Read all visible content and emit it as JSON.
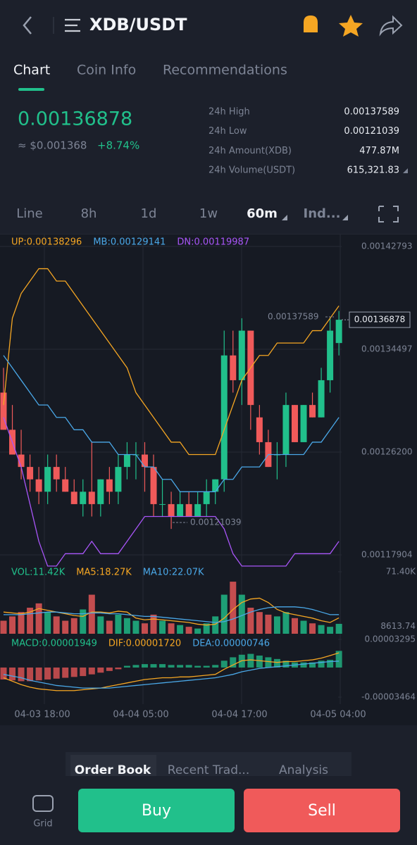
{
  "header": {
    "title": "XDB/USDT"
  },
  "tabs": [
    "Chart",
    "Coin Info",
    "Recommendations"
  ],
  "ticker": {
    "price": "0.00136878",
    "fiat": "≈ $0.001368",
    "change": "+8.74%"
  },
  "stats": [
    {
      "label": "24h High",
      "value": "0.00137589"
    },
    {
      "label": "24h Low",
      "value": "0.00121039"
    },
    {
      "label": "24h Amount(XDB)",
      "value": "477.87M"
    },
    {
      "label": "24h Volume(USDT)",
      "value": "615,321.83"
    }
  ],
  "intervals": [
    "Line",
    "8h",
    "1d",
    "1w",
    "60m",
    "Ind..."
  ],
  "dates": [
    "04-03 18:00",
    "04-04 05:00",
    "04-04 17:00",
    "04-05 04:00"
  ],
  "annotations": {
    "high": "0.00137589",
    "low": "0.00121039",
    "last": "0.00136878"
  },
  "chart_data": [
    {
      "type": "candlestick",
      "ylim": [
        0.00117222,
        0.00143475
      ],
      "yticks": [
        0.00142793,
        0.00134497,
        {
          "value": 0.001262,
          "label": "0.00126200"
        },
        0.00117904
      ],
      "up_color": "#21c08b",
      "down_color": "#f05a5a",
      "candles": [
        [
          0.00131,
          0.00133,
          0.00128,
          0.00128
        ],
        [
          0.00128,
          0.0013,
          0.00126,
          0.00126
        ],
        [
          0.00126,
          0.00128,
          0.00124,
          0.00125
        ],
        [
          0.00125,
          0.00126,
          0.00123,
          0.00124
        ],
        [
          0.00124,
          0.00125,
          0.00122,
          0.00123
        ],
        [
          0.00123,
          0.00126,
          0.00122,
          0.00125
        ],
        [
          0.00125,
          0.00126,
          0.00123,
          0.00124
        ],
        [
          0.00124,
          0.00125,
          0.00123,
          0.00123
        ],
        [
          0.00123,
          0.00124,
          0.00122,
          0.00122
        ],
        [
          0.00122,
          0.00124,
          0.00121,
          0.00123
        ],
        [
          0.00123,
          0.00127,
          0.00121,
          0.00122
        ],
        [
          0.00122,
          0.00124,
          0.00121,
          0.00124
        ],
        [
          0.00124,
          0.00125,
          0.00122,
          0.00123
        ],
        [
          0.00123,
          0.00126,
          0.00122,
          0.00125
        ],
        [
          0.00125,
          0.00127,
          0.00124,
          0.00126
        ],
        [
          0.00126,
          0.00127,
          0.00124,
          0.00126
        ],
        [
          0.00126,
          0.00127,
          0.00123,
          0.00125
        ],
        [
          0.00125,
          0.00126,
          0.00121,
          0.00122
        ],
        [
          0.00122,
          0.00124,
          0.00121,
          0.00122
        ],
        [
          0.00122,
          0.00123,
          0.0012,
          0.00121
        ],
        [
          0.00121,
          0.00123,
          0.00121,
          0.00122
        ],
        [
          0.00122,
          0.00123,
          0.00121,
          0.00121
        ],
        [
          0.00121,
          0.00123,
          0.00121,
          0.00122
        ],
        [
          0.00122,
          0.00124,
          0.00121,
          0.00123
        ],
        [
          0.00123,
          0.00124,
          0.00122,
          0.00124
        ],
        [
          0.00124,
          0.00136,
          0.00123,
          0.00134
        ],
        [
          0.00134,
          0.00136,
          0.00131,
          0.00132
        ],
        [
          0.00132,
          0.00137,
          0.0013,
          0.00136
        ],
        [
          0.00136,
          0.00136,
          0.00128,
          0.0013
        ],
        [
          0.00129,
          0.0013,
          0.00126,
          0.00127
        ],
        [
          0.00127,
          0.00128,
          0.00125,
          0.00125
        ],
        [
          0.00126,
          0.00127,
          0.00124,
          0.00126
        ],
        [
          0.00126,
          0.00131,
          0.00125,
          0.0013
        ],
        [
          0.0013,
          0.0013,
          0.00127,
          0.00127
        ],
        [
          0.00127,
          0.0013,
          0.00127,
          0.0013
        ],
        [
          0.0013,
          0.00131,
          0.00129,
          0.00129
        ],
        [
          0.00129,
          0.00133,
          0.00129,
          0.00132
        ],
        [
          0.00132,
          0.00137,
          0.00131,
          0.00136
        ],
        [
          0.00135,
          0.00137589,
          0.00134,
          0.00136878
        ]
      ],
      "series": [
        {
          "name": "UP:0.00138296",
          "color": "#f5a623",
          "values": [
            0.0013,
            0.00137,
            0.00139,
            0.0014,
            0.00141,
            0.00141,
            0.0014,
            0.0014,
            0.00139,
            0.00138,
            0.00137,
            0.00136,
            0.00135,
            0.00134,
            0.00133,
            0.00131,
            0.0013,
            0.00129,
            0.00128,
            0.00127,
            0.00127,
            0.00126,
            0.00126,
            0.00126,
            0.00126,
            0.00128,
            0.0013,
            0.00132,
            0.00133,
            0.00134,
            0.00134,
            0.00135,
            0.00135,
            0.00135,
            0.00135,
            0.00136,
            0.00136,
            0.00137,
            0.00138
          ]
        },
        {
          "name": "MB:0.00129141",
          "color": "#4aa8e8",
          "values": [
            0.00134,
            0.00133,
            0.00132,
            0.00131,
            0.0013,
            0.0013,
            0.00129,
            0.00129,
            0.00128,
            0.00128,
            0.00127,
            0.00127,
            0.00127,
            0.00126,
            0.00126,
            0.00126,
            0.00125,
            0.00125,
            0.00124,
            0.00124,
            0.00123,
            0.00123,
            0.00123,
            0.00123,
            0.00123,
            0.00124,
            0.00124,
            0.00125,
            0.00125,
            0.00125,
            0.00126,
            0.00126,
            0.00126,
            0.00126,
            0.00126,
            0.00127,
            0.00127,
            0.00128,
            0.00129
          ]
        },
        {
          "name": "DN:0.00119987",
          "color": "#a855f7",
          "values": [
            0.00129,
            0.00127,
            0.00125,
            0.00122,
            0.00119,
            0.00117,
            0.00117,
            0.00118,
            0.00118,
            0.00118,
            0.00119,
            0.00118,
            0.00118,
            0.00118,
            0.00119,
            0.0012,
            0.00121,
            0.00121,
            0.00121,
            0.00121,
            0.00121,
            0.00121,
            0.00121,
            0.00121,
            0.00121,
            0.0012,
            0.00118,
            0.00117,
            0.00117,
            0.00117,
            0.00117,
            0.00117,
            0.00117,
            0.00118,
            0.00118,
            0.00118,
            0.00118,
            0.00118,
            0.00119
          ]
        }
      ]
    },
    {
      "type": "volume",
      "ylim": [
        0,
        71400
      ],
      "yticks": [
        {
          "value": 71400,
          "label": "71.40K"
        },
        8613.74
      ],
      "bars": {
        "name": "VOL:11.42K",
        "color": "#21c08b",
        "values": [
          15000,
          20000,
          25000,
          30000,
          35000,
          25000,
          20000,
          15000,
          18000,
          28000,
          45000,
          20000,
          15000,
          22000,
          18000,
          15000,
          12000,
          22000,
          15000,
          12000,
          10000,
          8000,
          6000,
          12000,
          20000,
          45000,
          60000,
          45000,
          30000,
          25000,
          22000,
          20000,
          25000,
          18000,
          15000,
          12000,
          10000,
          8000,
          11420
        ]
      },
      "series": [
        {
          "name": "MA5:18.27K",
          "color": "#f5a623",
          "values": [
            25000,
            24000,
            23000,
            25000,
            29000,
            27000,
            25000,
            23000,
            21000,
            20000,
            25000,
            25000,
            24000,
            26000,
            25000,
            18000,
            16000,
            17000,
            16000,
            15000,
            14000,
            13000,
            11000,
            10000,
            11000,
            18000,
            28000,
            36000,
            40000,
            41000,
            36000,
            28000,
            24000,
            22000,
            20000,
            18000,
            15000,
            13000,
            18270
          ]
        },
        {
          "name": "MA10:22.07K",
          "color": "#4aa8e8",
          "values": [
            22000,
            22000,
            22000,
            23000,
            24000,
            25000,
            25000,
            24000,
            23000,
            23000,
            24000,
            24000,
            23000,
            23000,
            22000,
            21000,
            20000,
            20000,
            19000,
            18000,
            17000,
            16000,
            15000,
            14000,
            13000,
            14000,
            17000,
            21000,
            25000,
            28000,
            30000,
            31000,
            31000,
            31000,
            30000,
            28000,
            25000,
            22000,
            22070
          ]
        }
      ]
    },
    {
      "type": "macd",
      "ylim": [
        -3.464e-05,
        3.295e-05
      ],
      "yticks": [
        3.295e-05,
        -3.464e-05
      ],
      "bars": {
        "name": "MACD:0.00001949",
        "color": "#21c08b",
        "values": [
          -1.4e-05,
          -1.5e-05,
          -1.6e-05,
          -1.6e-05,
          -1.5e-05,
          -1.4e-05,
          -1.3e-05,
          -1.2e-05,
          -1.1e-05,
          -1e-05,
          -8e-06,
          -6e-06,
          -4e-06,
          -2e-06,
          2e-06,
          3e-06,
          4e-06,
          4e-06,
          4e-06,
          3e-06,
          3e-06,
          3e-06,
          2e-06,
          2e-06,
          3e-06,
          8e-06,
          1.2e-05,
          1.5e-05,
          1.6e-05,
          1.4e-05,
          1.2e-05,
          1e-05,
          8e-06,
          6e-06,
          6e-06,
          6e-06,
          8e-06,
          9e-06,
          1.949e-05
        ]
      },
      "series": [
        {
          "name": "DIF:0.00001720",
          "color": "#f5a623",
          "values": [
            -1.2e-05,
            -1.6e-05,
            -2e-05,
            -2.3e-05,
            -2.5e-05,
            -2.6e-05,
            -2.7e-05,
            -2.7e-05,
            -2.7e-05,
            -2.6e-05,
            -2.5e-05,
            -2.4e-05,
            -2.2e-05,
            -2e-05,
            -1.8e-05,
            -1.6e-05,
            -1.4e-05,
            -1.3e-05,
            -1.2e-05,
            -1.2e-05,
            -1.1e-05,
            -1.1e-05,
            -1e-05,
            -9e-06,
            -8e-06,
            -2e-06,
            3e-06,
            8e-06,
            9e-06,
            8e-06,
            7e-06,
            6e-06,
            7e-06,
            7e-06,
            8e-06,
            9e-06,
            1.1e-05,
            1.4e-05,
            1.72e-05
          ]
        },
        {
          "name": "DEA:0.00000746",
          "color": "#4aa8e8",
          "values": [
            -8e-06,
            -1e-05,
            -1.2e-05,
            -1.5e-05,
            -1.7e-05,
            -1.9e-05,
            -2.1e-05,
            -2.2e-05,
            -2.3e-05,
            -2.4e-05,
            -2.4e-05,
            -2.4e-05,
            -2.4e-05,
            -2.3e-05,
            -2.2e-05,
            -2.1e-05,
            -2e-05,
            -1.9e-05,
            -1.8e-05,
            -1.7e-05,
            -1.6e-05,
            -1.5e-05,
            -1.4e-05,
            -1.3e-05,
            -1.2e-05,
            -1e-05,
            -8e-06,
            -5e-06,
            -3e-06,
            -1e-06,
            0,
            1e-06,
            2e-06,
            3e-06,
            4e-06,
            5e-06,
            6e-06,
            7e-06,
            7.46e-06
          ]
        }
      ]
    }
  ],
  "bottom": {
    "tabs": [
      "Order Book",
      "Recent Trad...",
      "Analysis"
    ],
    "grid": "Grid",
    "buy": "Buy",
    "sell": "Sell"
  }
}
